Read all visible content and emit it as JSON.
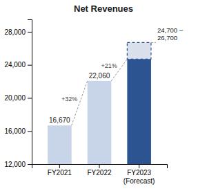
{
  "chart_data": {
    "type": "bar",
    "title": "Net Revenues",
    "categories": [
      "FY2021",
      "FY2022",
      "FY2023\n(Forecast)"
    ],
    "values": [
      16670,
      22060,
      24700
    ],
    "colors": [
      "#c8d4e8",
      "#c8d4e8",
      "#2b5490"
    ],
    "data_labels": true,
    "value_labels": [
      "16,670",
      "22,060",
      null
    ],
    "forecast_upper": 26700,
    "forecast_labels": [
      "24,700 –",
      "26,700"
    ],
    "growth_labels": [
      "+32%",
      "+21%"
    ],
    "ylim": [
      12000,
      29500
    ],
    "yticks": [
      {
        "value": 12000,
        "label": "12,000"
      },
      {
        "value": 16000,
        "label": "16,000"
      },
      {
        "value": 20000,
        "label": "20,000"
      },
      {
        "value": 24000,
        "label": "24,000"
      },
      {
        "value": 28000,
        "label": "28,000"
      }
    ],
    "grid": false
  }
}
